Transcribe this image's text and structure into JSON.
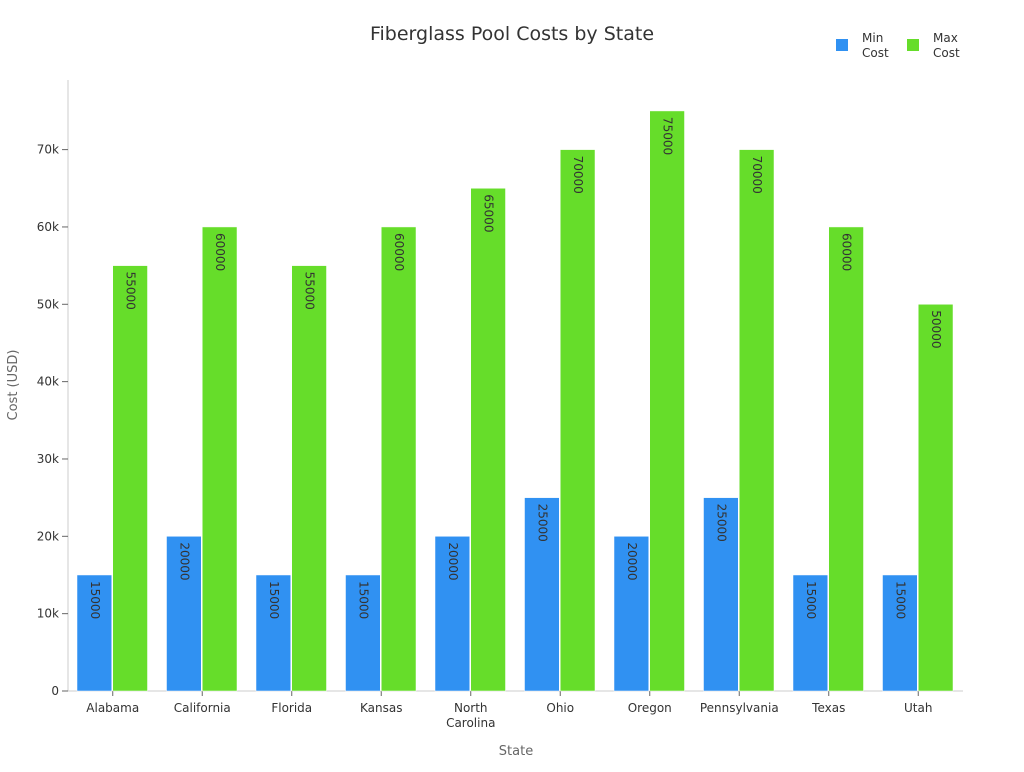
{
  "chart_data": {
    "type": "bar",
    "title": "Fiberglass Pool Costs by State",
    "xlabel": "State",
    "ylabel": "Cost (USD)",
    "categories": [
      "Alabama",
      "California",
      "Florida",
      "Kansas",
      "North Carolina",
      "Ohio",
      "Oregon",
      "Pennsylvania",
      "Texas",
      "Utah"
    ],
    "category_lines": [
      [
        "Alabama"
      ],
      [
        "California"
      ],
      [
        "Florida"
      ],
      [
        "Kansas"
      ],
      [
        "North",
        "Carolina"
      ],
      [
        "Ohio"
      ],
      [
        "Oregon"
      ],
      [
        "Pennsylvania"
      ],
      [
        "Texas"
      ],
      [
        "Utah"
      ]
    ],
    "series": [
      {
        "name": "Min Cost",
        "legend_lines": [
          "Min",
          "Cost"
        ],
        "color": "#3091F2",
        "values": [
          15000,
          20000,
          15000,
          15000,
          20000,
          25000,
          20000,
          25000,
          15000,
          15000
        ]
      },
      {
        "name": "Max Cost",
        "legend_lines": [
          "Max",
          "Cost"
        ],
        "color": "#66DD2A",
        "values": [
          55000,
          60000,
          55000,
          60000,
          65000,
          70000,
          75000,
          70000,
          60000,
          50000
        ]
      }
    ],
    "ylim": [
      0,
      79000
    ],
    "yticks": [
      0,
      10000,
      20000,
      30000,
      40000,
      50000,
      60000,
      70000
    ],
    "ytick_labels": [
      "0",
      "10k",
      "20k",
      "30k",
      "40k",
      "50k",
      "60k",
      "70k"
    ],
    "grid": false,
    "legend_position": "top-right",
    "data_labels": true
  }
}
